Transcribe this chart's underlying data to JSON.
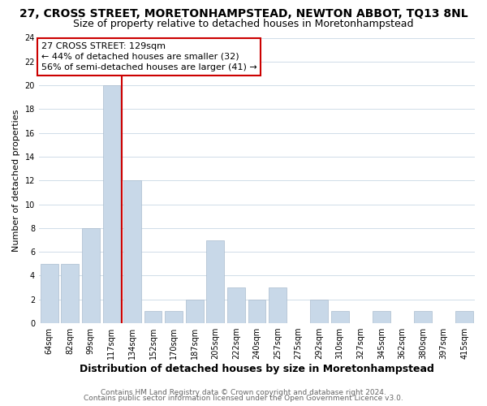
{
  "title": "27, CROSS STREET, MORETONHAMPSTEAD, NEWTON ABBOT, TQ13 8NL",
  "subtitle": "Size of property relative to detached houses in Moretonhampstead",
  "xlabel": "Distribution of detached houses by size in Moretonhampstead",
  "ylabel": "Number of detached properties",
  "bins": [
    "64sqm",
    "82sqm",
    "99sqm",
    "117sqm",
    "134sqm",
    "152sqm",
    "170sqm",
    "187sqm",
    "205sqm",
    "222sqm",
    "240sqm",
    "257sqm",
    "275sqm",
    "292sqm",
    "310sqm",
    "327sqm",
    "345sqm",
    "362sqm",
    "380sqm",
    "397sqm",
    "415sqm"
  ],
  "counts": [
    5,
    5,
    8,
    20,
    12,
    1,
    1,
    2,
    7,
    3,
    2,
    3,
    0,
    2,
    1,
    0,
    1,
    0,
    1,
    0,
    1
  ],
  "bar_color": "#c8d8e8",
  "bar_edge_color": "#aabcce",
  "vline_x": 3.5,
  "vline_color": "#cc0000",
  "annotation_box_edge": "#cc0000",
  "annotation_line1": "27 CROSS STREET: 129sqm",
  "annotation_line2": "← 44% of detached houses are smaller (32)",
  "annotation_line3": "56% of semi-detached houses are larger (41) →",
  "ylim": [
    0,
    24
  ],
  "yticks": [
    0,
    2,
    4,
    6,
    8,
    10,
    12,
    14,
    16,
    18,
    20,
    22,
    24
  ],
  "footer1": "Contains HM Land Registry data © Crown copyright and database right 2024.",
  "footer2": "Contains public sector information licensed under the Open Government Licence v3.0.",
  "bg_color": "#ffffff",
  "grid_color": "#d0dce8",
  "title_fontsize": 10,
  "subtitle_fontsize": 9,
  "xlabel_fontsize": 9,
  "ylabel_fontsize": 8,
  "tick_fontsize": 7,
  "ann_fontsize": 8,
  "footer_fontsize": 6.5
}
